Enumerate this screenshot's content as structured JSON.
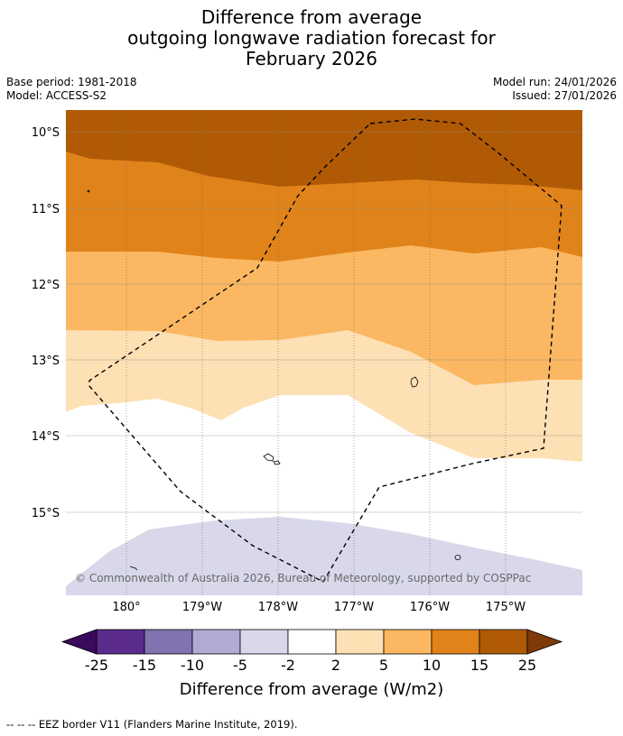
{
  "title": {
    "line1": "Difference from average",
    "line2": "outgoing longwave radiation forecast for",
    "line3": "February 2026"
  },
  "meta": {
    "base_period": "Base period: 1981-2018",
    "model": "Model: ACCESS-S2",
    "model_run": "Model run: 24/01/2026",
    "issued": "Issued: 27/01/2026"
  },
  "map": {
    "lat_labels": [
      "10°S",
      "11°S",
      "12°S",
      "13°S",
      "14°S",
      "15°S"
    ],
    "lon_labels": [
      "180°",
      "179°W",
      "178°W",
      "177°W",
      "176°W",
      "175°W"
    ],
    "copyright": "© Commonwealth of Australia 2026, Bureau of Meteorology, supported by COSPPac",
    "colors": {
      "band_15_25": "#b15a05",
      "band_10_15": "#e0831a",
      "band_5_10": "#fbb762",
      "band_2_5": "#fde0b4",
      "band_m2_2": "#ffffff",
      "band_m5_m2": "#d8d8ea",
      "grid": "#888888",
      "eez": "#000000"
    }
  },
  "colorbar": {
    "ticks": [
      "-25",
      "-15",
      "-10",
      "-5",
      "-2",
      "2",
      "5",
      "10",
      "15",
      "25"
    ],
    "colors": [
      "#3a0a5c",
      "#5a2b8c",
      "#8272b0",
      "#b1aad3",
      "#d8d8ea",
      "#ffffff",
      "#fde0b4",
      "#fbb762",
      "#e0831a",
      "#b15a05",
      "#7f3a0a"
    ],
    "label": "Difference from average (W/m2)"
  },
  "footnote": "--  --  -- EEZ border V11 (Flanders Marine Institute, 2019)."
}
